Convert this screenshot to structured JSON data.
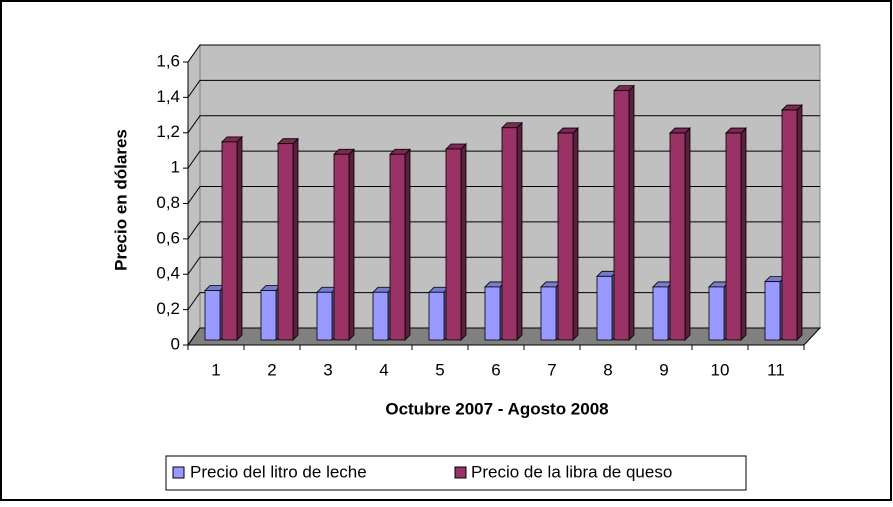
{
  "chart_data": {
    "type": "bar3d",
    "x_label": "Octubre 2007 - Agosto 2008",
    "y_label": "Precio en dólares",
    "categories": [
      1,
      2,
      3,
      4,
      5,
      6,
      7,
      8,
      9,
      10,
      11
    ],
    "series": [
      {
        "name": "Precio del litro de leche",
        "color": "#9999ff",
        "values": [
          0.28,
          0.28,
          0.27,
          0.27,
          0.27,
          0.3,
          0.3,
          0.36,
          0.3,
          0.3,
          0.33
        ]
      },
      {
        "name": "Precio de la libra de queso",
        "color": "#993366",
        "values": [
          1.12,
          1.11,
          1.05,
          1.05,
          1.08,
          1.2,
          1.17,
          1.41,
          1.17,
          1.17,
          1.3
        ]
      }
    ],
    "ylim": [
      0,
      1.6
    ],
    "yticks": [
      0,
      {
        "value": 0.2,
        "label": "0,2"
      },
      {
        "value": 0.4,
        "label": "0,4"
      },
      {
        "value": 0.6,
        "label": "0,6"
      },
      {
        "value": 0.8,
        "label": "0,8"
      },
      1,
      {
        "value": 1.2,
        "label": "1,2"
      },
      {
        "value": 1.4,
        "label": "1,4"
      },
      {
        "value": 1.6,
        "label": "1,6"
      }
    ],
    "grid": true
  }
}
